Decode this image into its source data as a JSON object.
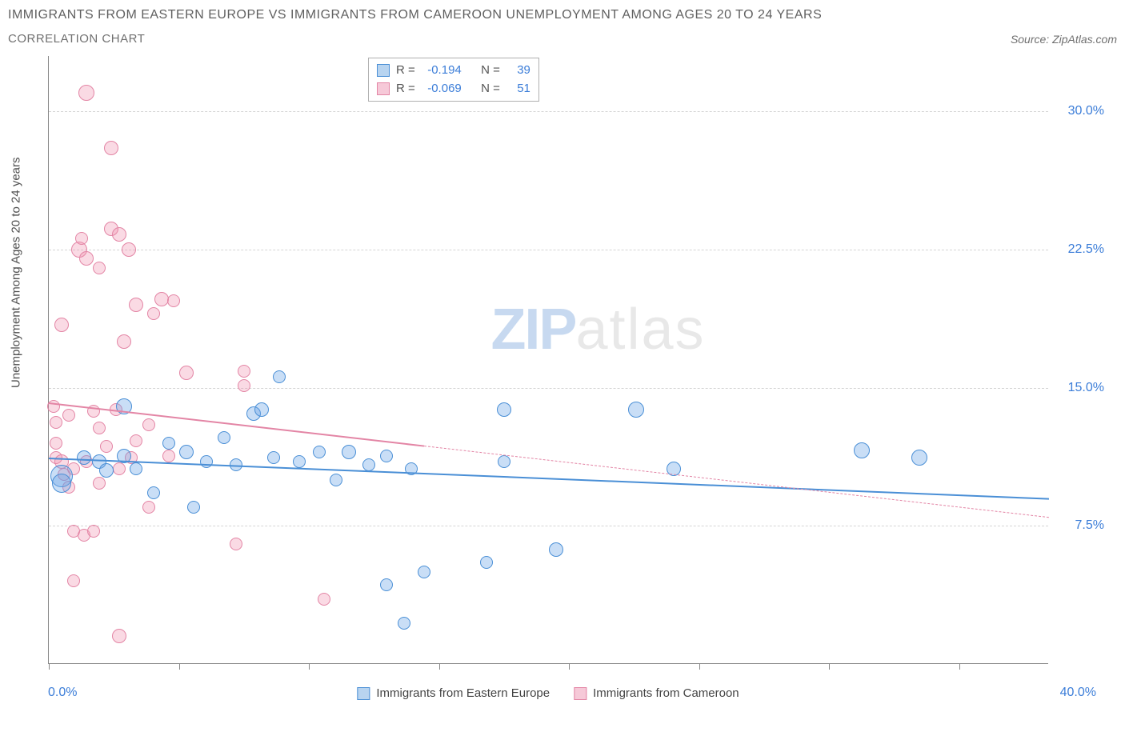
{
  "title": "IMMIGRANTS FROM EASTERN EUROPE VS IMMIGRANTS FROM CAMEROON UNEMPLOYMENT AMONG AGES 20 TO 24 YEARS",
  "subtitle": "CORRELATION CHART",
  "source_label": "Source:",
  "source_name": "ZipAtlas.com",
  "yaxis_label": "Unemployment Among Ages 20 to 24 years",
  "xlim": [
    0,
    40
  ],
  "ylim": [
    0,
    33
  ],
  "x_min_label": "0.0%",
  "x_max_label": "40.0%",
  "x_ticks_pct": [
    0,
    13,
    26,
    39,
    52,
    65,
    78,
    91
  ],
  "y_gridlines": [
    {
      "value": 7.5,
      "label": "7.5%"
    },
    {
      "value": 15.0,
      "label": "15.0%"
    },
    {
      "value": 22.5,
      "label": "22.5%"
    },
    {
      "value": 30.0,
      "label": "30.0%"
    }
  ],
  "watermark_a": "ZIP",
  "watermark_b": "atlas",
  "series": [
    {
      "name": "Immigrants from Eastern Europe",
      "color_fill": "rgba(100,160,230,0.35)",
      "color_stroke": "#4a8fd6",
      "swatch_fill": "#b8d4f0",
      "swatch_border": "#4a8fd6",
      "stats": {
        "R": "-0.194",
        "N": "39"
      },
      "trend": {
        "x1": 0,
        "y1": 11.2,
        "x2": 40,
        "y2": 9.0,
        "solid_until_x": 40
      },
      "points": [
        {
          "x": 0.5,
          "y": 10.2,
          "r": 14
        },
        {
          "x": 0.5,
          "y": 9.8,
          "r": 12
        },
        {
          "x": 1.4,
          "y": 11.2,
          "r": 9
        },
        {
          "x": 2.0,
          "y": 11.0,
          "r": 9
        },
        {
          "x": 2.3,
          "y": 10.5,
          "r": 9
        },
        {
          "x": 3.0,
          "y": 14.0,
          "r": 10
        },
        {
          "x": 3.0,
          "y": 11.3,
          "r": 9
        },
        {
          "x": 3.5,
          "y": 10.6,
          "r": 8
        },
        {
          "x": 4.2,
          "y": 9.3,
          "r": 8
        },
        {
          "x": 4.8,
          "y": 12.0,
          "r": 8
        },
        {
          "x": 5.5,
          "y": 11.5,
          "r": 9
        },
        {
          "x": 5.8,
          "y": 8.5,
          "r": 8
        },
        {
          "x": 6.3,
          "y": 11.0,
          "r": 8
        },
        {
          "x": 7.0,
          "y": 12.3,
          "r": 8
        },
        {
          "x": 7.5,
          "y": 10.8,
          "r": 8
        },
        {
          "x": 8.2,
          "y": 13.6,
          "r": 9
        },
        {
          "x": 8.5,
          "y": 13.8,
          "r": 9
        },
        {
          "x": 9.0,
          "y": 11.2,
          "r": 8
        },
        {
          "x": 9.2,
          "y": 15.6,
          "r": 8
        },
        {
          "x": 10.0,
          "y": 11.0,
          "r": 8
        },
        {
          "x": 10.8,
          "y": 11.5,
          "r": 8
        },
        {
          "x": 11.5,
          "y": 10.0,
          "r": 8
        },
        {
          "x": 12.0,
          "y": 11.5,
          "r": 9
        },
        {
          "x": 12.8,
          "y": 10.8,
          "r": 8
        },
        {
          "x": 13.5,
          "y": 11.3,
          "r": 8
        },
        {
          "x": 13.5,
          "y": 4.3,
          "r": 8
        },
        {
          "x": 14.2,
          "y": 2.2,
          "r": 8
        },
        {
          "x": 14.5,
          "y": 10.6,
          "r": 8
        },
        {
          "x": 15.0,
          "y": 5.0,
          "r": 8
        },
        {
          "x": 17.5,
          "y": 5.5,
          "r": 8
        },
        {
          "x": 18.2,
          "y": 11.0,
          "r": 8
        },
        {
          "x": 18.2,
          "y": 13.8,
          "r": 9
        },
        {
          "x": 20.3,
          "y": 6.2,
          "r": 9
        },
        {
          "x": 23.5,
          "y": 13.8,
          "r": 10
        },
        {
          "x": 25.0,
          "y": 10.6,
          "r": 9
        },
        {
          "x": 32.5,
          "y": 11.6,
          "r": 10
        },
        {
          "x": 34.8,
          "y": 11.2,
          "r": 10
        }
      ]
    },
    {
      "name": "Immigrants from Cameroon",
      "color_fill": "rgba(240,140,170,0.32)",
      "color_stroke": "#e385a5",
      "swatch_fill": "#f6c9d8",
      "swatch_border": "#e385a5",
      "stats": {
        "R": "-0.069",
        "N": "51"
      },
      "trend": {
        "x1": 0,
        "y1": 14.2,
        "x2": 40,
        "y2": 8.0,
        "solid_until_x": 15
      },
      "points": [
        {
          "x": 0.2,
          "y": 14.0,
          "r": 8
        },
        {
          "x": 0.3,
          "y": 13.1,
          "r": 8
        },
        {
          "x": 0.3,
          "y": 12.0,
          "r": 8
        },
        {
          "x": 0.3,
          "y": 11.2,
          "r": 8
        },
        {
          "x": 0.5,
          "y": 11.0,
          "r": 9
        },
        {
          "x": 0.6,
          "y": 10.3,
          "r": 8
        },
        {
          "x": 0.8,
          "y": 9.6,
          "r": 8
        },
        {
          "x": 0.5,
          "y": 18.4,
          "r": 9
        },
        {
          "x": 0.8,
          "y": 13.5,
          "r": 8
        },
        {
          "x": 1.0,
          "y": 10.6,
          "r": 8
        },
        {
          "x": 1.0,
          "y": 7.2,
          "r": 8
        },
        {
          "x": 1.0,
          "y": 4.5,
          "r": 8
        },
        {
          "x": 1.2,
          "y": 22.5,
          "r": 10
        },
        {
          "x": 1.3,
          "y": 23.1,
          "r": 8
        },
        {
          "x": 1.4,
          "y": 7.0,
          "r": 8
        },
        {
          "x": 1.5,
          "y": 22.0,
          "r": 9
        },
        {
          "x": 1.5,
          "y": 11.0,
          "r": 8
        },
        {
          "x": 1.5,
          "y": 31.0,
          "r": 10
        },
        {
          "x": 1.8,
          "y": 13.7,
          "r": 8
        },
        {
          "x": 1.8,
          "y": 7.2,
          "r": 8
        },
        {
          "x": 2.0,
          "y": 12.8,
          "r": 8
        },
        {
          "x": 2.0,
          "y": 21.5,
          "r": 8
        },
        {
          "x": 2.0,
          "y": 9.8,
          "r": 8
        },
        {
          "x": 2.3,
          "y": 11.8,
          "r": 8
        },
        {
          "x": 2.5,
          "y": 23.6,
          "r": 9
        },
        {
          "x": 2.5,
          "y": 28.0,
          "r": 9
        },
        {
          "x": 2.7,
          "y": 13.8,
          "r": 8
        },
        {
          "x": 2.8,
          "y": 23.3,
          "r": 9
        },
        {
          "x": 2.8,
          "y": 10.6,
          "r": 8
        },
        {
          "x": 2.8,
          "y": 1.5,
          "r": 9
        },
        {
          "x": 3.0,
          "y": 17.5,
          "r": 9
        },
        {
          "x": 3.2,
          "y": 22.5,
          "r": 9
        },
        {
          "x": 3.3,
          "y": 11.2,
          "r": 8
        },
        {
          "x": 3.5,
          "y": 19.5,
          "r": 9
        },
        {
          "x": 3.5,
          "y": 12.1,
          "r": 8
        },
        {
          "x": 4.0,
          "y": 13.0,
          "r": 8
        },
        {
          "x": 4.0,
          "y": 8.5,
          "r": 8
        },
        {
          "x": 4.2,
          "y": 19.0,
          "r": 8
        },
        {
          "x": 4.5,
          "y": 19.8,
          "r": 9
        },
        {
          "x": 4.8,
          "y": 11.3,
          "r": 8
        },
        {
          "x": 5.0,
          "y": 19.7,
          "r": 8
        },
        {
          "x": 5.5,
          "y": 15.8,
          "r": 9
        },
        {
          "x": 7.5,
          "y": 6.5,
          "r": 8
        },
        {
          "x": 7.8,
          "y": 15.9,
          "r": 8
        },
        {
          "x": 7.8,
          "y": 15.1,
          "r": 8
        },
        {
          "x": 11.0,
          "y": 3.5,
          "r": 8
        }
      ]
    }
  ],
  "stats_labels": {
    "R": "R =",
    "N": "N ="
  }
}
